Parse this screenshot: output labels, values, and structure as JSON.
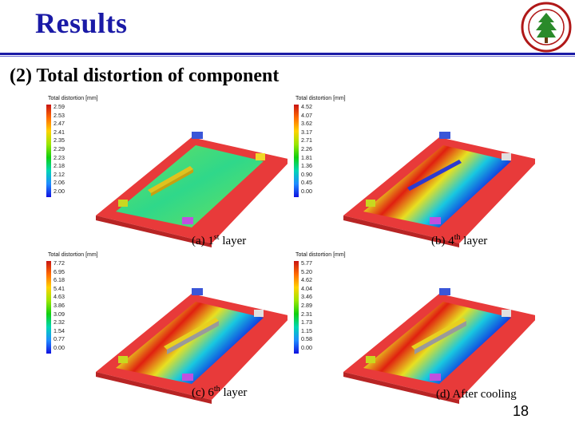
{
  "header": {
    "title": "Results",
    "subtitle": "(2) Total distortion of component",
    "logo_icon": "university-seal-icon"
  },
  "panels": [
    {
      "legend_title": "Total distortion [mm]",
      "legend_values": [
        "2.59",
        "2.53",
        "2.47",
        "2.41",
        "2.35",
        "2.29",
        "2.23",
        "2.18",
        "2.12",
        "2.06",
        "2.00"
      ],
      "caption_prefix": "(a) 1",
      "caption_sup": "st",
      "caption_suffix": "  layer"
    },
    {
      "legend_title": "Total distortion [mm]",
      "legend_values": [
        "4.52",
        "4.07",
        "3.62",
        "3.17",
        "2.71",
        "2.26",
        "1.81",
        "1.36",
        "0.90",
        "0.45",
        "0.00"
      ],
      "caption_prefix": "(b) 4",
      "caption_sup": "th",
      "caption_suffix": "  layer"
    },
    {
      "legend_title": "Total distortion [mm]",
      "legend_values": [
        "7.72",
        "6.95",
        "6.18",
        "5.41",
        "4.63",
        "3.86",
        "3.09",
        "2.32",
        "1.54",
        "0.77",
        "0.00"
      ],
      "caption_prefix": "(c) 6",
      "caption_sup": "th",
      "caption_suffix": " layer"
    },
    {
      "legend_title": "Total distortion [mm]",
      "legend_values": [
        "5.77",
        "5.20",
        "4.62",
        "4.04",
        "3.46",
        "2.89",
        "2.31",
        "1.73",
        "1.15",
        "0.58",
        "0.00"
      ],
      "caption_prefix": "(d) After cooling",
      "caption_sup": "",
      "caption_suffix": ""
    }
  ],
  "footer": {
    "page_number": "18"
  },
  "colors": {
    "title": "#1a1aa6",
    "base_plate": "#e83a3a",
    "seal": "#b01818"
  }
}
